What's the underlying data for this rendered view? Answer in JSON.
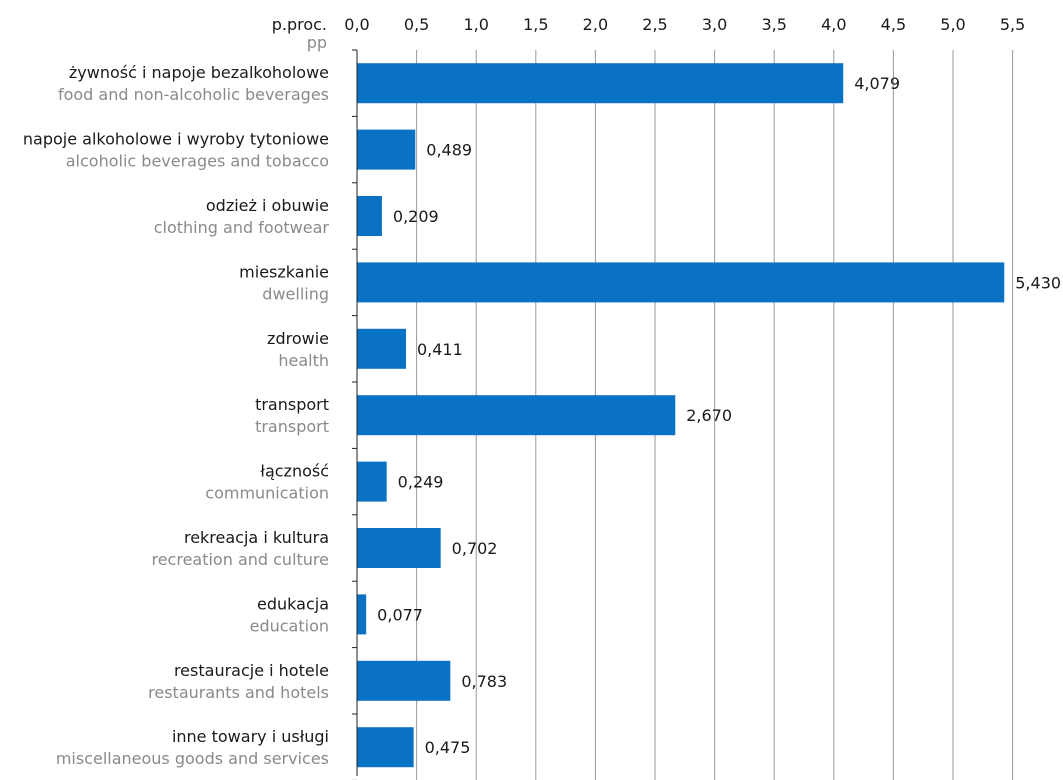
{
  "chart_data": {
    "type": "bar",
    "orientation": "horizontal",
    "unit_label": "p.proc.",
    "unit_label_en": "pp",
    "categories": [
      "żywność i napoje bezalkoholowe",
      "napoje alkoholowe i wyroby tytoniowe",
      "odzież i obuwie",
      "mieszkanie",
      "zdrowie",
      "transport",
      "łączność",
      "rekreacja i kultura",
      "edukacja",
      "restauracje i hotele",
      "inne towary i usługi"
    ],
    "categories_en": [
      "food and non-alcoholic beverages",
      "alcoholic beverages and tobacco",
      "clothing and footwear",
      "dwelling",
      "health",
      "transport",
      "communication",
      "recreation and culture",
      "education",
      "restaurants and hotels",
      "miscellaneous goods and services"
    ],
    "values": [
      4.079,
      0.489,
      0.209,
      5.43,
      0.411,
      2.67,
      0.249,
      0.702,
      0.077,
      0.783,
      0.475
    ],
    "value_labels": [
      "4,079",
      "0,489",
      "0,209",
      "5,430",
      "0,411",
      "2,670",
      "0,249",
      "0,702",
      "0,077",
      "0,783",
      "0,475"
    ],
    "x_ticks": [
      "0,0",
      "0,5",
      "1,0",
      "1,5",
      "2,0",
      "2,5",
      "3,0",
      "3,5",
      "4,0",
      "4,5",
      "5,0",
      "5,5"
    ],
    "xlim": [
      0,
      5.5
    ],
    "x_axis_position": "top",
    "grid": true,
    "bar_color": "#0A72C4"
  }
}
